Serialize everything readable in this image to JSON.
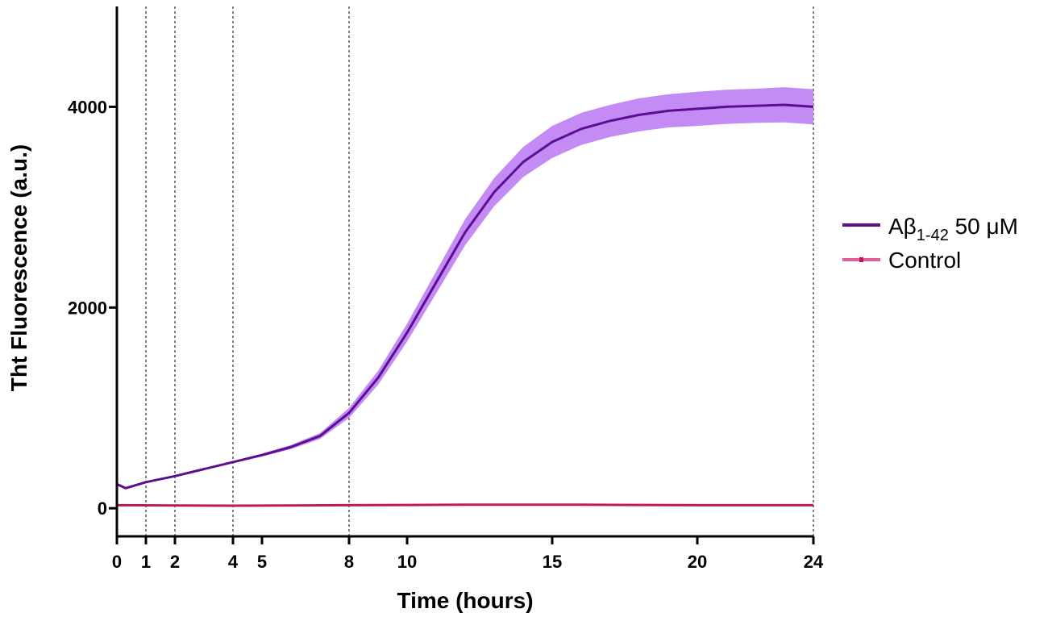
{
  "chart_data": {
    "type": "line",
    "xlabel": "Time (hours)",
    "ylabel": "Tht Fluorescence (a.u.)",
    "xlim": [
      0,
      24
    ],
    "ylim": [
      -280,
      5000
    ],
    "x_ticks": [
      0,
      1,
      2,
      4,
      5,
      8,
      10,
      15,
      20,
      24
    ],
    "y_ticks": [
      0,
      2000,
      4000
    ],
    "y_tick_labels": [
      "0",
      "2000",
      "4000"
    ],
    "vertical_reference_lines": [
      1,
      2,
      4,
      8,
      24
    ],
    "legend_position": "right",
    "series": [
      {
        "name_main": "Aβ",
        "name_sub": "1-42",
        "name_tail": " 50 μM",
        "color": "#5B0E91",
        "band_color": "#C48BF5",
        "x": [
          0,
          0.3,
          1,
          2,
          3,
          4,
          5,
          6,
          7,
          8,
          9,
          10,
          11,
          12,
          13,
          14,
          15,
          16,
          17,
          18,
          19,
          20,
          21,
          22,
          23,
          24
        ],
        "y": [
          240,
          200,
          260,
          320,
          390,
          460,
          530,
          610,
          720,
          950,
          1300,
          1750,
          2250,
          2750,
          3150,
          3450,
          3650,
          3780,
          3860,
          3920,
          3960,
          3980,
          4000,
          4010,
          4020,
          4000
        ],
        "error": [
          0,
          0,
          0,
          5,
          5,
          10,
          15,
          20,
          30,
          50,
          70,
          90,
          110,
          130,
          140,
          150,
          160,
          160,
          160,
          165,
          165,
          170,
          170,
          170,
          175,
          175
        ]
      },
      {
        "name": "Control",
        "color": "#C2185B",
        "x": [
          0,
          4,
          8,
          12,
          16,
          20,
          24
        ],
        "y": [
          30,
          25,
          30,
          35,
          35,
          30,
          30
        ]
      }
    ]
  }
}
